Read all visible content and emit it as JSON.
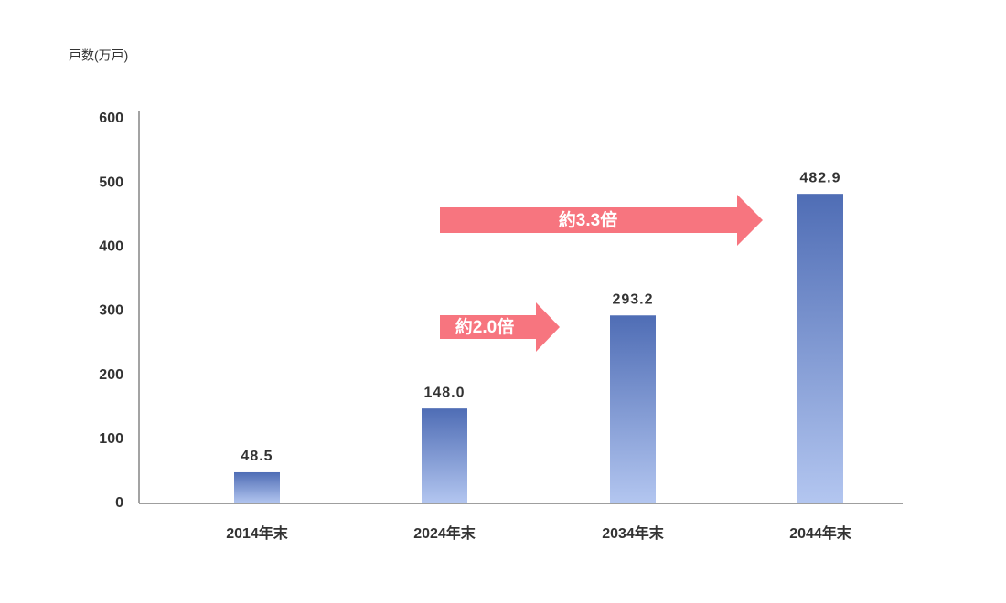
{
  "chart_data": {
    "type": "bar",
    "y_axis_label": "戸数(万戸)",
    "categories": [
      "2014年末",
      "2024年末",
      "2034年末",
      "2044年末"
    ],
    "values": [
      48.5,
      148.0,
      293.2,
      482.9
    ],
    "value_labels": [
      "48.5",
      "148.0",
      "293.2",
      "482.9"
    ],
    "colors": [
      "#4f6db5",
      "#b3c6f0"
    ],
    "ylim": [
      0,
      600
    ],
    "yticks": [
      0,
      100,
      200,
      300,
      400,
      500,
      600
    ],
    "grid": false,
    "annotations": [
      {
        "text": "約2.0倍",
        "color": "#f7757f"
      },
      {
        "text": "約3.3倍",
        "color": "#f7757f"
      }
    ]
  }
}
